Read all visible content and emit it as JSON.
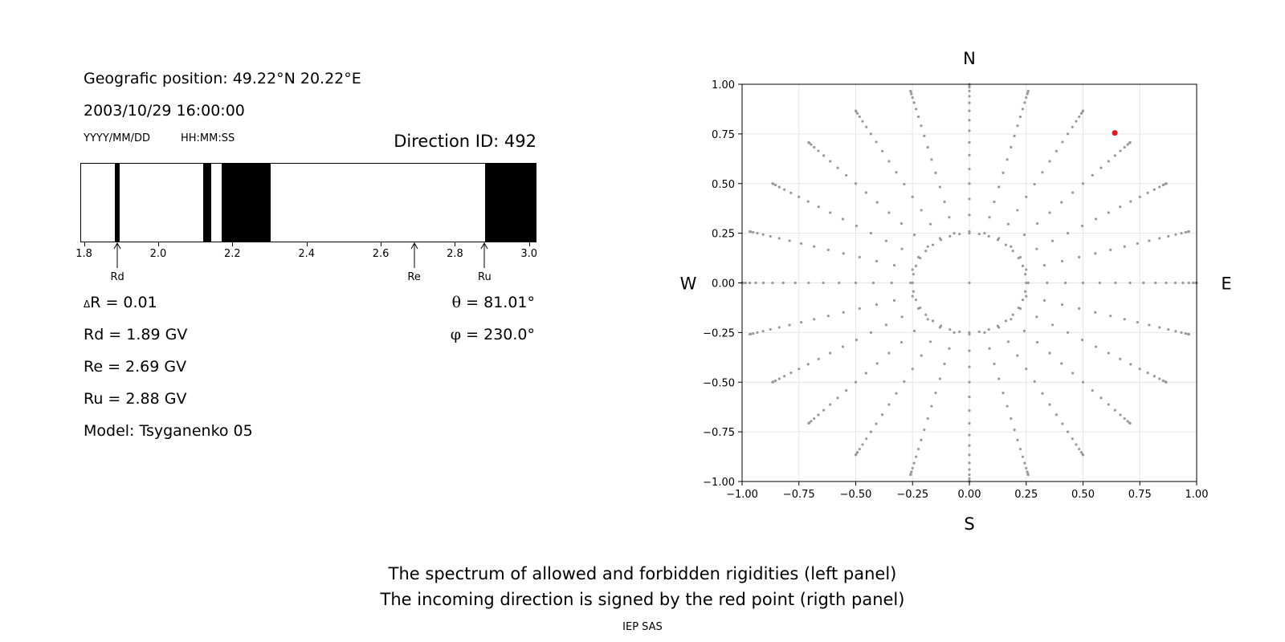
{
  "header": {
    "position_label": "Geografic position: 49.22°N 20.22°E",
    "datetime": "2003/10/29 16:00:00",
    "date_format": "YYYY/MM/DD",
    "time_format": "HH:MM:SS",
    "direction_id": "Direction ID: 492"
  },
  "stats": {
    "delta_r": "R = 0.01",
    "delta_symbol": "Δ",
    "rd": "Rd = 1.89 GV",
    "re": "Re = 2.69 GV",
    "ru": "Ru = 2.88 GV",
    "model": "Model: Tsyganenko 05",
    "theta_symbol": "θ",
    "theta": "= 81.01°",
    "phi_symbol": "φ",
    "phi": "= 230.0°"
  },
  "chart_data": [
    {
      "type": "bar",
      "subtype": "rigidity-spectrum",
      "xlim": [
        1.79,
        3.02
      ],
      "xticks": [
        "1.8",
        "2.0",
        "2.2",
        "2.4",
        "2.6",
        "2.8",
        "3.0"
      ],
      "xtick_values": [
        1.8,
        2.0,
        2.2,
        2.4,
        2.6,
        2.8,
        3.0
      ],
      "forbidden_ranges": [
        [
          1.88,
          1.895
        ],
        [
          2.12,
          2.14
        ],
        [
          2.17,
          2.3
        ],
        [
          2.88,
          3.02
        ]
      ],
      "markers": [
        {
          "label": "Rd",
          "value": 1.89
        },
        {
          "label": "Re",
          "value": 2.69
        },
        {
          "label": "Ru",
          "value": 2.88
        }
      ],
      "colors": {
        "forbidden": "#000000",
        "allowed": "#ffffff"
      }
    },
    {
      "type": "scatter",
      "subtype": "polar-direction-grid",
      "xlim": [
        -1.0,
        1.0
      ],
      "ylim": [
        -1.0,
        1.0
      ],
      "xticks": [
        "−1.00",
        "−0.75",
        "−0.50",
        "−0.25",
        "0.00",
        "0.25",
        "0.50",
        "0.75",
        "1.00"
      ],
      "yticks": [
        "1.00",
        "0.75",
        "0.50",
        "0.25",
        "0.00",
        "−0.25",
        "−0.50",
        "−0.75",
        "−1.00"
      ],
      "tick_values": [
        -1.0,
        -0.75,
        -0.5,
        -0.25,
        0.0,
        0.25,
        0.5,
        0.75,
        1.0
      ],
      "grid": true,
      "compass": {
        "north": "N",
        "south": "S",
        "west": "W",
        "east": "E"
      },
      "grid_points": {
        "azimuth_count": 24,
        "zenith_start_deg": 15,
        "zenith_step_deg": 5,
        "zenith_end_deg": 90,
        "inner_circle_radius": 0.25,
        "inner_circle_count": 36
      },
      "highlight_point": {
        "x": 0.64,
        "y": 0.755
      },
      "colors": {
        "grid_point": "#999999",
        "highlight": "#e41a1c",
        "gridline": "#e6e6e6"
      }
    }
  ],
  "footer": {
    "caption_line1": "The spectrum of allowed and forbidden rigidities (left panel)",
    "caption_line2": "The incoming direction is signed by the red point (rigth panel)",
    "credit": "IEP SAS"
  }
}
